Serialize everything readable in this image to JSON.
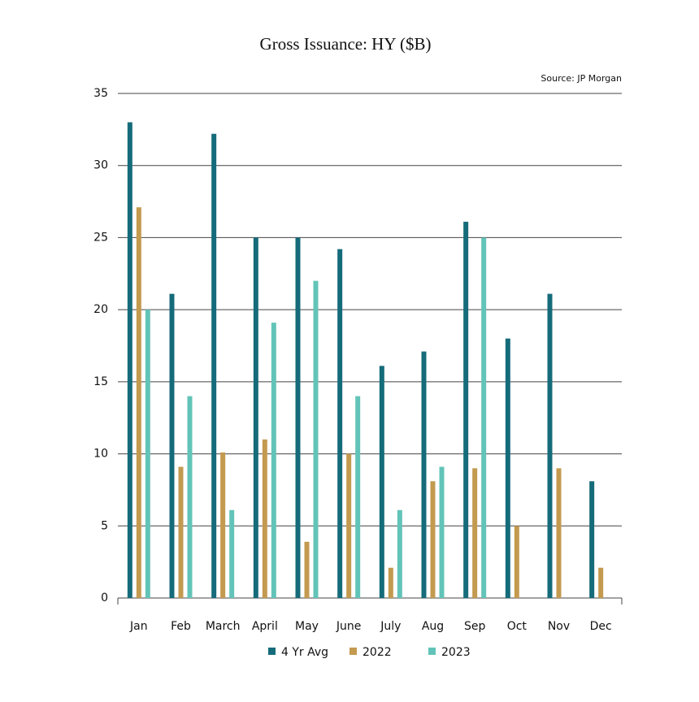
{
  "chart_data": {
    "type": "bar",
    "title": "Gross Issuance: HY ($B)",
    "source": "Source: JP Morgan",
    "categories": [
      "Jan",
      "Feb",
      "March",
      "April",
      "May",
      "June",
      "July",
      "Aug",
      "Sep",
      "Oct",
      "Nov",
      "Dec"
    ],
    "series": [
      {
        "name": "4 Yr Avg",
        "color": "#156b7a",
        "values": [
          33.0,
          21.1,
          32.2,
          25.0,
          25.0,
          24.2,
          16.1,
          17.1,
          26.1,
          18.0,
          21.1,
          8.1
        ]
      },
      {
        "name": "2022",
        "color": "#c39a4f",
        "values": [
          27.1,
          9.1,
          10.1,
          11.0,
          3.9,
          10.0,
          2.1,
          8.1,
          9.0,
          5.0,
          9.0,
          2.1
        ]
      },
      {
        "name": "2023",
        "color": "#62c4b8",
        "values": [
          20.0,
          14.0,
          6.1,
          19.1,
          22.0,
          14.0,
          6.1,
          9.1,
          25.0,
          null,
          null,
          null
        ]
      }
    ],
    "ylim": [
      0,
      35
    ],
    "yticks": [
      0,
      5,
      10,
      15,
      20,
      25,
      30,
      35
    ],
    "grid": true,
    "legend": "bottom"
  }
}
